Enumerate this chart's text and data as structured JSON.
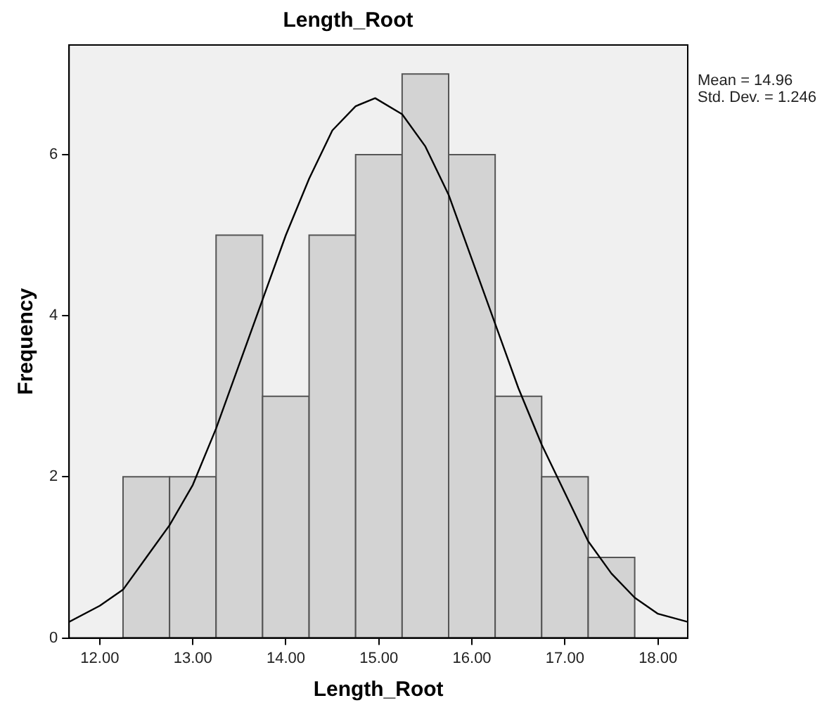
{
  "chart_data": {
    "type": "histogram",
    "title": "Length_Root",
    "xlabel": "Length_Root",
    "ylabel": "Frequency",
    "series": [
      {
        "type": "histogram",
        "color": "#d3d3d3",
        "bins": [
          12.25,
          12.75,
          13.25,
          13.75,
          14.25,
          14.75,
          15.25,
          15.75,
          16.25,
          16.75,
          17.25,
          17.75
        ],
        "values": [
          2,
          2,
          5,
          3,
          5,
          6,
          7,
          6,
          3,
          2,
          1
        ]
      },
      {
        "type": "line",
        "color": "#000000",
        "x": [
          11.67,
          12.0,
          12.25,
          12.5,
          12.75,
          13.0,
          13.25,
          13.5,
          13.75,
          14.0,
          14.25,
          14.5,
          14.75,
          14.96,
          15.25,
          15.5,
          15.75,
          16.0,
          16.25,
          16.5,
          16.75,
          17.0,
          17.25,
          17.5,
          17.75,
          18.0,
          18.32
        ],
        "values": [
          0.2,
          0.4,
          0.6,
          1.0,
          1.4,
          1.9,
          2.6,
          3.4,
          4.2,
          5.0,
          5.7,
          6.3,
          6.6,
          6.7,
          6.5,
          6.1,
          5.5,
          4.7,
          3.9,
          3.1,
          2.4,
          1.8,
          1.2,
          0.8,
          0.5,
          0.3,
          0.2
        ]
      }
    ],
    "xlim": [
      11.67,
      18.32
    ],
    "xticks": [
      {
        "value": 12,
        "label": "12.00"
      },
      {
        "value": 13,
        "label": "13.00"
      },
      {
        "value": 14,
        "label": "14.00"
      },
      {
        "value": 15,
        "label": "15.00"
      },
      {
        "value": 16,
        "label": "16.00"
      },
      {
        "value": 17,
        "label": "17.00"
      },
      {
        "value": 18,
        "label": "18.00"
      }
    ],
    "ylim": [
      0,
      7.36
    ],
    "yticks": [
      0,
      2,
      4,
      6
    ],
    "grid": false,
    "legend": false,
    "marker": "none",
    "line_style": "solid",
    "annotations": [
      "Mean = 14.96",
      "Std. Dev. = 1.246"
    ]
  }
}
